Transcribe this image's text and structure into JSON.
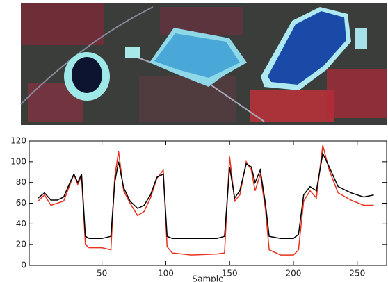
{
  "chart_data": {
    "type": "line",
    "xlabel": "Sample",
    "x": [
      0,
      5,
      10,
      15,
      20,
      25,
      28,
      31,
      34,
      37,
      40,
      50,
      57,
      60,
      63,
      67,
      72,
      78,
      83,
      88,
      93,
      98,
      101,
      105,
      120,
      140,
      146,
      150,
      154,
      158,
      163,
      167,
      170,
      174,
      178,
      181,
      190,
      200,
      204,
      208,
      213,
      218,
      223,
      228,
      235,
      245,
      255,
      263
    ],
    "series": [
      {
        "color": "#000000",
        "values": [
          65,
          70,
          63,
          63,
          66,
          80,
          88,
          80,
          88,
          28,
          26,
          26,
          28,
          80,
          100,
          75,
          62,
          55,
          58,
          68,
          85,
          88,
          28,
          26,
          26,
          26,
          28,
          95,
          65,
          72,
          98,
          95,
          80,
          92,
          60,
          28,
          26,
          26,
          30,
          68,
          76,
          72,
          108,
          95,
          76,
          70,
          66,
          68
        ]
      },
      {
        "color": "#e8321e",
        "values": [
          62,
          68,
          58,
          60,
          62,
          78,
          88,
          78,
          86,
          20,
          17,
          17,
          15,
          85,
          110,
          72,
          60,
          48,
          52,
          65,
          84,
          92,
          18,
          12,
          10,
          11,
          12,
          105,
          62,
          68,
          100,
          92,
          72,
          88,
          55,
          15,
          10,
          10,
          15,
          62,
          72,
          65,
          116,
          92,
          70,
          63,
          58,
          58
        ]
      }
    ],
    "xlim": [
      -7,
      273
    ],
    "xticks": [
      50,
      100,
      150,
      200,
      250
    ],
    "ylim": [
      0,
      120
    ],
    "yticks": [
      0,
      20,
      40,
      60,
      80,
      100,
      120
    ]
  }
}
